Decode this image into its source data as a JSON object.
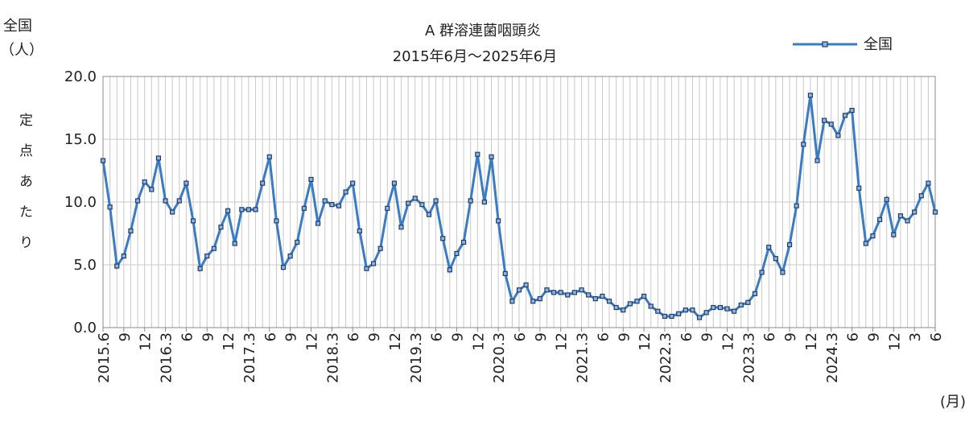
{
  "chart_data": {
    "type": "line",
    "title": "A 群溶連菌咽頭炎",
    "subtitle": "2015年6月～2025年6月",
    "ylabel_top": "全国",
    "ylabel_unit": "（人）",
    "ylabel": "定点あたり",
    "xlabel_unit": "(月)",
    "legend": "top-right",
    "grid": true,
    "ylim": [
      0,
      20
    ],
    "yticks": [
      {
        "value": 0,
        "label": "0.0"
      },
      {
        "value": 5,
        "label": "5.0"
      },
      {
        "value": 10,
        "label": "10.0"
      },
      {
        "value": 15,
        "label": "15.0"
      },
      {
        "value": 20,
        "label": "20.0"
      }
    ],
    "categories": [
      "2015.6",
      null,
      null,
      "9",
      null,
      null,
      "12",
      null,
      null,
      "2016.3",
      null,
      null,
      "6",
      null,
      null,
      "9",
      null,
      null,
      "12",
      null,
      null,
      "2017.3",
      null,
      null,
      "6",
      null,
      null,
      "9",
      null,
      null,
      "12",
      null,
      null,
      "2018.3",
      null,
      null,
      "6",
      null,
      null,
      "9",
      null,
      null,
      "12",
      null,
      null,
      "2019.3",
      null,
      null,
      "6",
      null,
      null,
      "9",
      null,
      null,
      "12",
      null,
      null,
      "2020.3",
      null,
      null,
      "6",
      null,
      null,
      "9",
      null,
      null,
      "12",
      null,
      null,
      "2021.3",
      null,
      null,
      "6",
      null,
      null,
      "9",
      null,
      null,
      "12",
      null,
      null,
      "2022.3",
      null,
      null,
      "6",
      null,
      null,
      "9",
      null,
      null,
      "12",
      null,
      null,
      "2023.3",
      null,
      null,
      "6",
      null,
      null,
      "9",
      null,
      null,
      "12",
      null,
      null,
      "2024.3",
      null,
      null,
      "6",
      null,
      null,
      "9",
      null,
      null,
      "12",
      null,
      null,
      "3",
      null,
      null,
      "6"
    ],
    "series": [
      {
        "name": "全国",
        "color": "#3a7cc4",
        "marker_color": "#1f3d6b",
        "values": [
          13.3,
          9.6,
          4.9,
          5.7,
          7.7,
          10.1,
          11.6,
          11.0,
          13.5,
          10.1,
          9.2,
          10.1,
          11.5,
          8.5,
          4.7,
          5.7,
          6.3,
          8.0,
          9.3,
          6.7,
          9.4,
          9.4,
          9.4,
          11.5,
          13.6,
          8.5,
          4.8,
          5.7,
          6.8,
          9.5,
          11.8,
          8.3,
          10.1,
          9.8,
          9.7,
          10.8,
          11.5,
          7.7,
          4.7,
          5.1,
          6.3,
          9.5,
          11.5,
          8.0,
          9.9,
          10.3,
          9.8,
          9.0,
          10.1,
          7.1,
          4.6,
          5.9,
          6.8,
          10.1,
          13.8,
          10.0,
          13.6,
          8.5,
          4.3,
          2.1,
          3.0,
          3.4,
          2.1,
          2.3,
          3.0,
          2.8,
          2.8,
          2.6,
          2.8,
          3.0,
          2.6,
          2.3,
          2.5,
          2.1,
          1.6,
          1.4,
          1.9,
          2.1,
          2.5,
          1.7,
          1.3,
          0.9,
          0.9,
          1.1,
          1.4,
          1.4,
          0.8,
          1.2,
          1.6,
          1.6,
          1.5,
          1.3,
          1.8,
          2.0,
          2.7,
          4.4,
          6.4,
          5.5,
          4.4,
          6.6,
          9.7,
          14.6,
          18.5,
          13.3,
          16.5,
          16.2,
          15.3,
          16.9,
          17.3,
          11.1,
          6.7,
          7.3,
          8.6,
          10.2,
          7.4,
          8.9,
          8.5,
          9.2,
          10.5,
          11.5,
          9.2
        ]
      }
    ]
  }
}
